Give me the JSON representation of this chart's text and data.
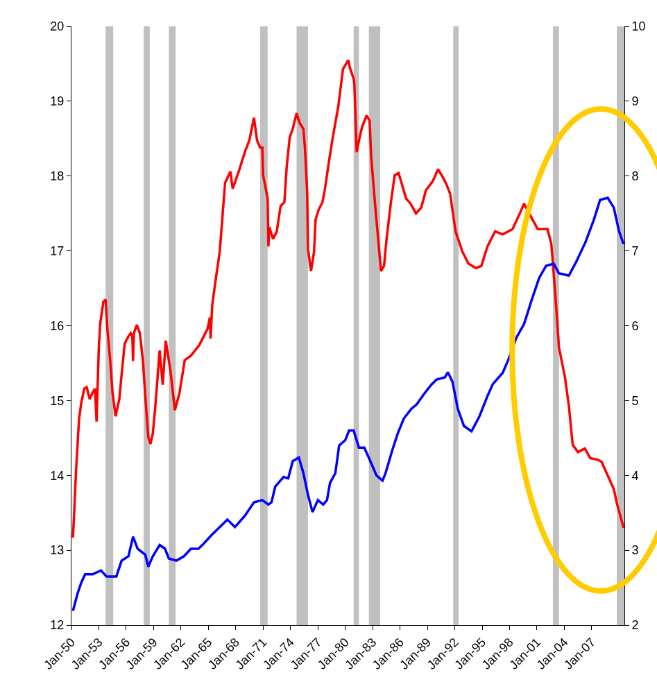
{
  "chart_data": {
    "type": "line",
    "xlim": [
      "1950-01",
      "2010-08"
    ],
    "xticks": [
      {
        "value": "1950-01",
        "label": "Jan-50"
      },
      {
        "value": "1953-01",
        "label": "Jan-53"
      },
      {
        "value": "1956-01",
        "label": "Jan-56"
      },
      {
        "value": "1959-01",
        "label": "Jan-59"
      },
      {
        "value": "1962-01",
        "label": "Jan-62"
      },
      {
        "value": "1965-01",
        "label": "Jan-65"
      },
      {
        "value": "1968-01",
        "label": "Jan-68"
      },
      {
        "value": "1971-01",
        "label": "Jan-71"
      },
      {
        "value": "1974-01",
        "label": "Jan-74"
      },
      {
        "value": "1977-01",
        "label": "Jan-77"
      },
      {
        "value": "1980-01",
        "label": "Jan-80"
      },
      {
        "value": "1983-01",
        "label": "Jan-83"
      },
      {
        "value": "1986-01",
        "label": "Jan-86"
      },
      {
        "value": "1989-01",
        "label": "Jan-89"
      },
      {
        "value": "1992-01",
        "label": "Jan-92"
      },
      {
        "value": "1995-01",
        "label": "Jan-95"
      },
      {
        "value": "1998-01",
        "label": "Jan-98"
      },
      {
        "value": "2001-01",
        "label": "Jan-01"
      },
      {
        "value": "2004-01",
        "label": "Jan-04"
      },
      {
        "value": "2007-01",
        "label": "Jan-07"
      }
    ],
    "ylim": [
      12,
      20
    ],
    "yticks": [
      12,
      13,
      14,
      15,
      16,
      17,
      18,
      19,
      20
    ],
    "y2lim": [
      2,
      10
    ],
    "y2ticks": [
      2,
      3,
      4,
      5,
      6,
      7,
      8,
      9,
      10
    ],
    "grid": false,
    "legend": false,
    "marker": "none",
    "line_style": "solid",
    "series": [
      {
        "color": "#ff0000",
        "axis": "y",
        "x": [
          "1950-03",
          "1950-05",
          "1950-07",
          "1950-11",
          "1951-02",
          "1951-06",
          "1951-09",
          "1952-01",
          "1952-05",
          "1952-08",
          "1952-10",
          "1953-01",
          "1953-03",
          "1953-07",
          "1953-10",
          "1953-12",
          "1954-04",
          "1954-07",
          "1954-11",
          "1955-04",
          "1955-07",
          "1955-11",
          "1956-04",
          "1956-07",
          "1956-09",
          "1956-10",
          "1956-11",
          "1957-03",
          "1957-07",
          "1957-11",
          "1958-02",
          "1958-06",
          "1958-09",
          "1958-12",
          "1959-03",
          "1959-09",
          "1960-01",
          "1960-05",
          "1960-11",
          "1961-05",
          "1961-11",
          "1962-06",
          "1963-02",
          "1964-01",
          "1964-12",
          "1965-03",
          "1965-04",
          "1965-06",
          "1965-10",
          "1966-04",
          "1966-09",
          "1966-11",
          "1967-06",
          "1967-09",
          "1968-05",
          "1969-01",
          "1969-07",
          "1970-01",
          "1970-05",
          "1970-09",
          "1970-12",
          "1971-01",
          "1971-07",
          "1971-08",
          "1971-09",
          "1972-02",
          "1972-07",
          "1972-12",
          "1973-05",
          "1973-08",
          "1973-12",
          "1974-04",
          "1974-09",
          "1975-01",
          "1975-06",
          "1975-08",
          "1975-11",
          "1975-12",
          "1976-04",
          "1976-08",
          "1976-10",
          "1977-02",
          "1977-07",
          "1977-10",
          "1978-04",
          "1978-08",
          "1979-04",
          "1979-10",
          "1980-05",
          "1980-07",
          "1980-12",
          "1981-01",
          "1981-04",
          "1981-08",
          "1981-11",
          "1982-05",
          "1982-09",
          "1982-11",
          "1983-04",
          "1983-12",
          "1984-04",
          "1984-07",
          "1985-01",
          "1985-06",
          "1985-11",
          "1986-03",
          "1986-09",
          "1987-03",
          "1987-10",
          "1988-05",
          "1988-11",
          "1989-08",
          "1990-03",
          "1990-09",
          "1991-02",
          "1991-07",
          "1992-02",
          "1992-11",
          "1993-07",
          "1994-05",
          "1994-12",
          "1995-08",
          "1996-06",
          "1997-04",
          "1998-05",
          "1999-03",
          "1999-08",
          "2000-04",
          "2001-02",
          "2002-03",
          "2002-08",
          "2003-01",
          "2003-06",
          "2004-02",
          "2004-07",
          "2004-12",
          "2005-07",
          "2006-04",
          "2006-11",
          "2007-09",
          "2008-02",
          "2008-10",
          "2009-06",
          "2009-10",
          "2010-07"
        ],
        "values": [
          13.17,
          13.58,
          14.05,
          14.75,
          14.98,
          15.16,
          15.18,
          15.02,
          15.11,
          15.16,
          14.72,
          15.72,
          16.04,
          16.32,
          16.35,
          15.99,
          15.53,
          15.11,
          14.79,
          15.02,
          15.35,
          15.76,
          15.86,
          15.9,
          15.86,
          15.53,
          15.9,
          16.01,
          15.9,
          15.53,
          15.07,
          14.51,
          14.42,
          14.56,
          14.88,
          15.67,
          15.21,
          15.8,
          15.41,
          14.87,
          15.1,
          15.54,
          15.6,
          15.74,
          15.96,
          16.11,
          15.83,
          16.26,
          16.57,
          16.99,
          17.65,
          17.91,
          18.06,
          17.83,
          18.06,
          18.32,
          18.48,
          18.78,
          18.48,
          18.38,
          18.38,
          18.01,
          17.7,
          17.06,
          17.32,
          17.16,
          17.26,
          17.6,
          17.65,
          18.12,
          18.52,
          18.63,
          18.84,
          18.71,
          18.63,
          18.38,
          17.76,
          17.03,
          16.73,
          16.99,
          17.42,
          17.55,
          17.65,
          17.81,
          18.22,
          18.48,
          18.94,
          19.43,
          19.55,
          19.45,
          19.3,
          19.22,
          18.32,
          18.52,
          18.65,
          18.81,
          18.74,
          18.27,
          17.65,
          16.73,
          16.8,
          17.13,
          17.65,
          18.01,
          18.04,
          17.91,
          17.7,
          17.63,
          17.5,
          17.58,
          17.81,
          17.93,
          18.09,
          17.99,
          17.89,
          17.76,
          17.26,
          16.99,
          16.83,
          16.77,
          16.8,
          17.06,
          17.26,
          17.22,
          17.29,
          17.51,
          17.63,
          17.48,
          17.29,
          17.29,
          17.09,
          16.44,
          15.71,
          15.3,
          14.93,
          14.41,
          14.31,
          14.36,
          14.23,
          14.21,
          14.18,
          14.0,
          13.82,
          13.63,
          13.3
        ]
      },
      {
        "color": "#0000ff",
        "axis": "y2",
        "x": [
          "1950-03",
          "1950-09",
          "1951-02",
          "1951-07",
          "1952-05",
          "1953-04",
          "1953-11",
          "1954-12",
          "1955-07",
          "1956-04",
          "1956-10",
          "1957-04",
          "1958-02",
          "1958-06",
          "1958-12",
          "1959-09",
          "1960-04",
          "1960-09",
          "1961-07",
          "1962-05",
          "1963-02",
          "1963-12",
          "1964-07",
          "1965-05",
          "1966-04",
          "1967-02",
          "1967-12",
          "1969-01",
          "1970-01",
          "1970-12",
          "1971-08",
          "1971-12",
          "1972-05",
          "1973-04",
          "1973-10",
          "1974-04",
          "1974-12",
          "1975-06",
          "1975-12",
          "1976-06",
          "1977-01",
          "1977-08",
          "1978-01",
          "1978-05",
          "1978-12",
          "1979-05",
          "1980-01",
          "1980-06",
          "1980-12",
          "1981-07",
          "1982-02",
          "1982-10",
          "1983-06",
          "1984-02",
          "1984-06",
          "1985-03",
          "1985-10",
          "1986-06",
          "1987-04",
          "1987-11",
          "1988-08",
          "1989-06",
          "1990-01",
          "1990-12",
          "1991-04",
          "1991-10",
          "1992-05",
          "1993-01",
          "1993-11",
          "1994-09",
          "1995-08",
          "1996-03",
          "1997-04",
          "1997-12",
          "1998-10",
          "1999-08",
          "2000-06",
          "2001-04",
          "2002-01",
          "2002-11",
          "2003-06",
          "2004-07",
          "2005-05",
          "2006-05",
          "2007-04",
          "2007-12",
          "2008-10",
          "2009-06",
          "2010-01",
          "2010-07"
        ],
        "values": [
          2.19,
          2.42,
          2.57,
          2.68,
          2.68,
          2.73,
          2.65,
          2.65,
          2.86,
          2.92,
          3.18,
          3.02,
          2.94,
          2.78,
          2.92,
          3.07,
          3.02,
          2.89,
          2.86,
          2.92,
          3.02,
          3.02,
          3.09,
          3.2,
          3.31,
          3.41,
          3.31,
          3.46,
          3.64,
          3.67,
          3.61,
          3.64,
          3.85,
          3.98,
          3.96,
          4.19,
          4.24,
          4.03,
          3.74,
          3.51,
          3.67,
          3.61,
          3.67,
          3.9,
          4.03,
          4.4,
          4.47,
          4.6,
          4.6,
          4.37,
          4.37,
          4.19,
          4.0,
          3.93,
          4.03,
          4.34,
          4.56,
          4.76,
          4.89,
          4.95,
          5.08,
          5.21,
          5.28,
          5.31,
          5.38,
          5.25,
          4.89,
          4.66,
          4.59,
          4.78,
          5.06,
          5.22,
          5.37,
          5.56,
          5.84,
          6.02,
          6.34,
          6.64,
          6.8,
          6.83,
          6.7,
          6.67,
          6.86,
          7.12,
          7.42,
          7.68,
          7.71,
          7.58,
          7.26,
          7.09
        ]
      }
    ],
    "bands": [
      {
        "axis": "x",
        "from": "1953-10",
        "to": "1954-08",
        "color": "#c0c0c0"
      },
      {
        "axis": "x",
        "from": "1957-12",
        "to": "1958-08",
        "color": "#c0c0c0"
      },
      {
        "axis": "x",
        "from": "1960-09",
        "to": "1961-06",
        "color": "#c0c0c0"
      },
      {
        "axis": "x",
        "from": "1970-09",
        "to": "1971-07",
        "color": "#c0c0c0"
      },
      {
        "axis": "x",
        "from": "1974-09",
        "to": "1975-12",
        "color": "#c0c0c0"
      },
      {
        "axis": "x",
        "from": "1980-12",
        "to": "1981-07",
        "color": "#c0c0c0"
      },
      {
        "axis": "x",
        "from": "1982-08",
        "to": "1983-11",
        "color": "#c0c0c0"
      },
      {
        "axis": "x",
        "from": "1991-11",
        "to": "1992-06",
        "color": "#c0c0c0"
      },
      {
        "axis": "x",
        "from": "2002-10",
        "to": "2003-06",
        "color": "#c0c0c0"
      },
      {
        "axis": "x",
        "from": "2009-10",
        "to": "2010-08",
        "color": "#c0c0c0"
      }
    ]
  }
}
